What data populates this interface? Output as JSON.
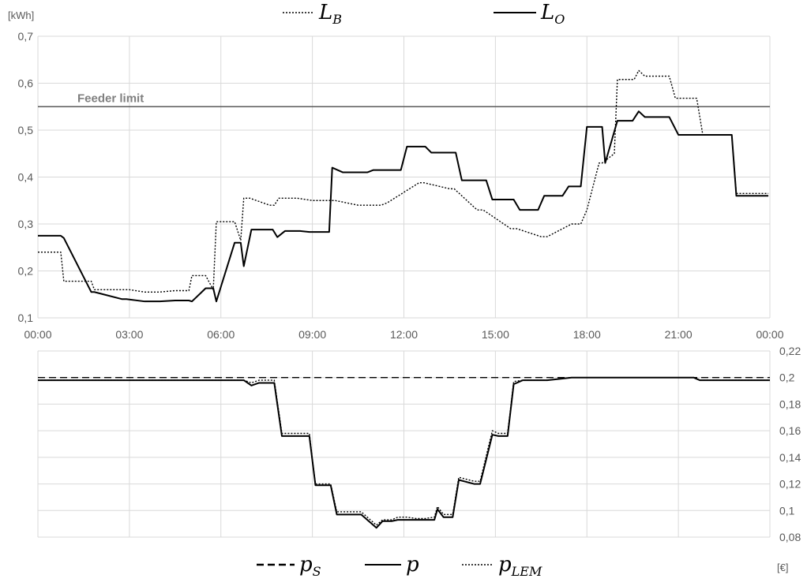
{
  "chart_data": [
    {
      "type": "line",
      "y_unit_label": "[kWh]",
      "ylim": [
        0.1,
        0.7
      ],
      "y_ticks": [
        "0,1",
        "0,2",
        "0,3",
        "0,4",
        "0,5",
        "0,6",
        "0,7"
      ],
      "x_ticks": [
        "00:00",
        "03:00",
        "06:00",
        "09:00",
        "12:00",
        "15:00",
        "18:00",
        "21:00",
        "00:00"
      ],
      "x_range_hours": [
        0,
        24
      ],
      "grid": true,
      "legend_position": "top",
      "annotation": {
        "text": "Feeder limit",
        "value": 0.55
      },
      "colors": {
        "line": "#000000",
        "feeder": "#595959",
        "grid": "#d9d9d9"
      },
      "series": [
        {
          "name": "L_B",
          "legend_main": "L",
          "legend_sub": "B",
          "style": "dotted",
          "x": [
            0,
            0.75,
            0.85,
            1.75,
            1.85,
            3.0,
            3.5,
            4.0,
            4.5,
            4.95,
            5.05,
            5.5,
            5.75,
            5.85,
            6.45,
            6.65,
            6.75,
            6.95,
            7.6,
            7.75,
            7.9,
            8.5,
            9.0,
            9.6,
            9.75,
            10.5,
            11.25,
            11.45,
            12.5,
            12.65,
            13.5,
            13.65,
            14.4,
            14.6,
            15.5,
            15.7,
            16.5,
            16.7,
            17.5,
            17.7,
            17.8,
            18.0,
            18.4,
            18.5,
            18.9,
            19.0,
            19.55,
            19.7,
            19.9,
            20.7,
            20.9,
            21.6,
            21.8,
            22.75,
            22.9,
            23.95
          ],
          "y": [
            0.24,
            0.24,
            0.178,
            0.178,
            0.16,
            0.16,
            0.155,
            0.155,
            0.158,
            0.158,
            0.19,
            0.19,
            0.16,
            0.305,
            0.305,
            0.265,
            0.355,
            0.355,
            0.34,
            0.34,
            0.355,
            0.355,
            0.35,
            0.35,
            0.35,
            0.34,
            0.34,
            0.345,
            0.388,
            0.388,
            0.375,
            0.375,
            0.33,
            0.33,
            0.29,
            0.29,
            0.273,
            0.273,
            0.3,
            0.3,
            0.3,
            0.33,
            0.43,
            0.43,
            0.45,
            0.608,
            0.608,
            0.627,
            0.615,
            0.615,
            0.568,
            0.568,
            0.49,
            0.49,
            0.365,
            0.365
          ]
        },
        {
          "name": "L_O",
          "legend_main": "L",
          "legend_sub": "O",
          "style": "solid",
          "x": [
            0,
            0.75,
            0.85,
            1.75,
            1.85,
            2.75,
            2.9,
            3.5,
            4.0,
            4.5,
            4.95,
            5.05,
            5.5,
            5.75,
            5.85,
            6.45,
            6.65,
            6.75,
            7.0,
            7.7,
            7.85,
            8.1,
            8.6,
            8.9,
            9.0,
            9.55,
            9.65,
            10.0,
            10.8,
            11.0,
            11.9,
            12.1,
            12.7,
            12.9,
            13.7,
            13.9,
            14.7,
            14.9,
            15.6,
            15.8,
            16.4,
            16.6,
            17.2,
            17.4,
            17.8,
            18.0,
            18.5,
            18.6,
            19.0,
            19.5,
            19.7,
            19.9,
            20.5,
            20.7,
            21.0,
            21.2,
            21.9,
            22.1,
            22.75,
            22.9,
            23.95
          ],
          "y": [
            0.275,
            0.275,
            0.27,
            0.155,
            0.155,
            0.14,
            0.14,
            0.135,
            0.135,
            0.137,
            0.137,
            0.135,
            0.163,
            0.163,
            0.135,
            0.26,
            0.26,
            0.21,
            0.288,
            0.288,
            0.272,
            0.285,
            0.285,
            0.283,
            0.283,
            0.283,
            0.42,
            0.41,
            0.41,
            0.415,
            0.415,
            0.465,
            0.465,
            0.452,
            0.452,
            0.393,
            0.393,
            0.352,
            0.352,
            0.33,
            0.33,
            0.36,
            0.36,
            0.38,
            0.38,
            0.507,
            0.507,
            0.43,
            0.52,
            0.52,
            0.54,
            0.528,
            0.528,
            0.528,
            0.49,
            0.49,
            0.49,
            0.49,
            0.49,
            0.36,
            0.36
          ]
        }
      ]
    },
    {
      "type": "line",
      "y_unit_label": "[€]",
      "ylim": [
        0.08,
        0.22
      ],
      "y_ticks": [
        "0,08",
        "0,1",
        "0,12",
        "0,14",
        "0,16",
        "0,18",
        "0,2",
        "0,22"
      ],
      "x_range_hours": [
        0,
        24
      ],
      "grid": true,
      "legend_position": "bottom",
      "colors": {
        "line": "#000000",
        "grid": "#d9d9d9"
      },
      "series": [
        {
          "name": "p_S",
          "legend_main": "p",
          "legend_sub": "S",
          "style": "dashed",
          "x": [
            0,
            24
          ],
          "y": [
            0.2,
            0.2
          ]
        },
        {
          "name": "p",
          "legend_main": "p",
          "legend_sub": "",
          "style": "solid",
          "x": [
            0,
            6.75,
            7.0,
            7.25,
            7.75,
            8.0,
            8.9,
            9.1,
            9.6,
            9.8,
            10.4,
            10.6,
            11.1,
            11.3,
            11.5,
            11.6,
            11.8,
            12.1,
            12.4,
            12.7,
            13.0,
            13.1,
            13.3,
            13.6,
            13.8,
            14.3,
            14.5,
            14.9,
            15.1,
            15.4,
            15.6,
            15.9,
            16.1,
            16.5,
            16.7,
            17.5,
            18.0,
            18.5,
            20.5,
            21.0,
            21.5,
            21.7,
            24.0
          ],
          "y": [
            0.198,
            0.198,
            0.194,
            0.196,
            0.196,
            0.156,
            0.156,
            0.119,
            0.119,
            0.097,
            0.097,
            0.097,
            0.087,
            0.092,
            0.092,
            0.092,
            0.093,
            0.093,
            0.093,
            0.093,
            0.093,
            0.101,
            0.095,
            0.095,
            0.123,
            0.12,
            0.12,
            0.157,
            0.156,
            0.156,
            0.195,
            0.198,
            0.198,
            0.198,
            0.198,
            0.2,
            0.2,
            0.2,
            0.2,
            0.2,
            0.2,
            0.198,
            0.198
          ]
        },
        {
          "name": "p_LEM",
          "legend_main": "p",
          "legend_sub": "LEM",
          "style": "dotted",
          "x": [
            0,
            6.75,
            7.0,
            7.25,
            7.75,
            8.0,
            8.9,
            9.1,
            9.6,
            9.8,
            10.4,
            10.6,
            11.1,
            11.3,
            11.5,
            11.6,
            11.8,
            12.1,
            12.4,
            12.7,
            13.0,
            13.1,
            13.3,
            13.6,
            13.8,
            14.3,
            14.5,
            14.9,
            15.1,
            15.4,
            15.6,
            15.9,
            16.1,
            16.5,
            16.7,
            17.5,
            18.0,
            18.5,
            20.5,
            21.0,
            21.5,
            21.7,
            24.0
          ],
          "y": [
            0.198,
            0.198,
            0.196,
            0.198,
            0.198,
            0.158,
            0.158,
            0.12,
            0.12,
            0.099,
            0.099,
            0.099,
            0.089,
            0.093,
            0.093,
            0.093,
            0.095,
            0.095,
            0.094,
            0.094,
            0.095,
            0.103,
            0.097,
            0.097,
            0.125,
            0.122,
            0.122,
            0.16,
            0.158,
            0.158,
            0.197,
            0.198,
            0.198,
            0.198,
            0.198,
            0.2,
            0.2,
            0.2,
            0.2,
            0.2,
            0.2,
            0.198,
            0.198
          ]
        }
      ]
    }
  ]
}
